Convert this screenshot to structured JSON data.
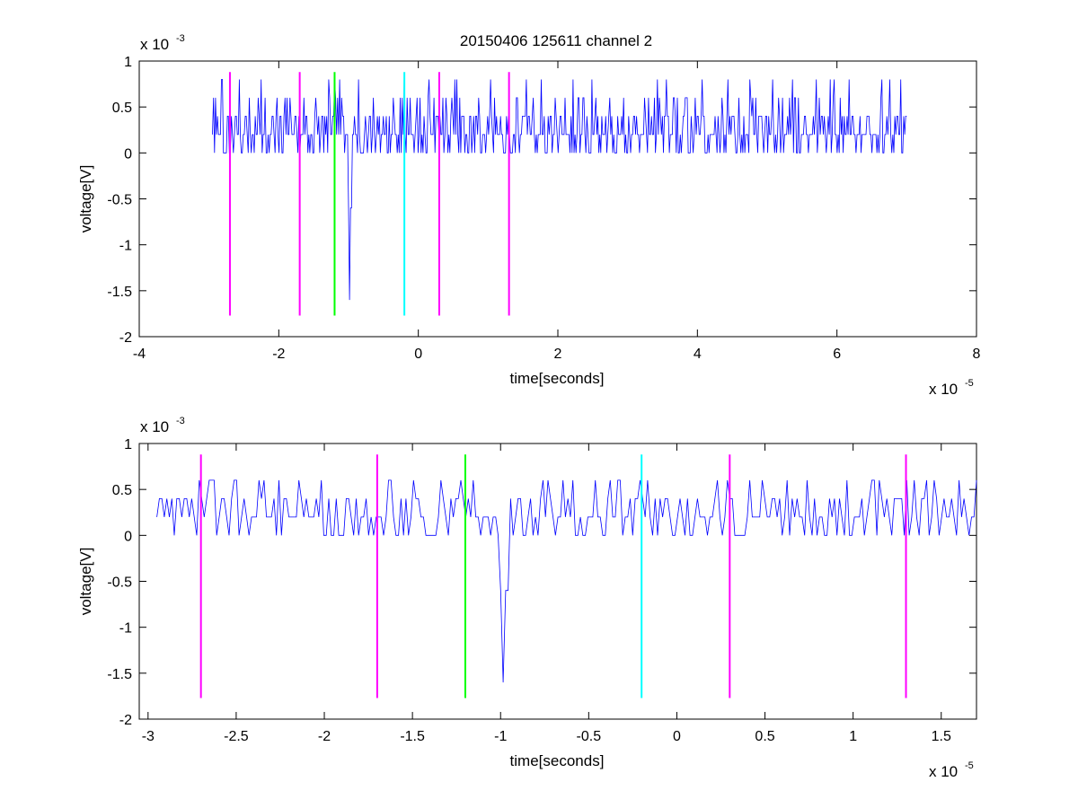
{
  "figure": {
    "title": "20150406 125611 channel 2"
  },
  "chart_data": [
    {
      "type": "line",
      "title": "20150406 125611 channel 2",
      "xlabel": "time[seconds]",
      "ylabel": "voltage[V]",
      "x_multiplier": "x 10",
      "x_multiplier_exp": "-5",
      "y_multiplier": "x 10",
      "y_multiplier_exp": "-3",
      "xlim": [
        -4,
        8
      ],
      "ylim": [
        -2,
        1
      ],
      "xticks": [
        -4,
        -2,
        0,
        2,
        4,
        6,
        8
      ],
      "xtick_labels": [
        "-4",
        "-2",
        "0",
        "2",
        "4",
        "6",
        "8"
      ],
      "yticks": [
        1,
        0.5,
        0,
        -0.5,
        -1,
        -1.5,
        -2
      ],
      "ytick_labels": [
        "1",
        "0.5",
        "0",
        "-0.5",
        "-1",
        "-1.5",
        "-2"
      ],
      "grid": false,
      "series": [
        {
          "color": "#0000ff",
          "x_range": [
            -2.95,
            7.0
          ],
          "baseline": 0.2,
          "levels": [
            0,
            0.2,
            0.4,
            0.6,
            0.8
          ],
          "spike": {
            "x": -0.98,
            "min": -1.6
          }
        }
      ],
      "markers": [
        {
          "x": -2.7,
          "color": "#ff00ff",
          "y_range": [
            -1.77,
            0.88
          ]
        },
        {
          "x": -1.7,
          "color": "#ff00ff",
          "y_range": [
            -1.77,
            0.88
          ]
        },
        {
          "x": -1.2,
          "color": "#00ff00",
          "y_range": [
            -1.77,
            0.88
          ]
        },
        {
          "x": -0.2,
          "color": "#00ffff",
          "y_range": [
            -1.77,
            0.88
          ]
        },
        {
          "x": 0.3,
          "color": "#ff00ff",
          "y_range": [
            -1.77,
            0.88
          ]
        },
        {
          "x": 1.3,
          "color": "#ff00ff",
          "y_range": [
            -1.77,
            0.88
          ]
        }
      ]
    },
    {
      "type": "line",
      "title": "",
      "xlabel": "time[seconds]",
      "ylabel": "voltage[V]",
      "x_multiplier": "x 10",
      "x_multiplier_exp": "-5",
      "y_multiplier": "x 10",
      "y_multiplier_exp": "-3",
      "xlim": [
        -3.05,
        1.7
      ],
      "ylim": [
        -2,
        1
      ],
      "xticks": [
        -3,
        -2.5,
        -2,
        -1.5,
        -1,
        -0.5,
        0,
        0.5,
        1,
        1.5
      ],
      "xtick_labels": [
        "-3",
        "-2.5",
        "-2",
        "-1.5",
        "-1",
        "-0.5",
        "0",
        "0.5",
        "1",
        "1.5"
      ],
      "yticks": [
        1,
        0.5,
        0,
        -0.5,
        -1,
        -1.5,
        -2
      ],
      "ytick_labels": [
        "1",
        "0.5",
        "0",
        "-0.5",
        "-1",
        "-1.5",
        "-2"
      ],
      "grid": false,
      "series": [
        {
          "color": "#0000ff",
          "x_range": [
            -2.95,
            1.7
          ],
          "baseline": 0.2,
          "levels": [
            0,
            0.2,
            0.4,
            0.6
          ],
          "spike": {
            "x": -0.98,
            "min": -1.6
          }
        }
      ],
      "markers": [
        {
          "x": -2.7,
          "color": "#ff00ff",
          "y_range": [
            -1.77,
            0.88
          ]
        },
        {
          "x": -1.7,
          "color": "#ff00ff",
          "y_range": [
            -1.77,
            0.88
          ]
        },
        {
          "x": -1.2,
          "color": "#00ff00",
          "y_range": [
            -1.77,
            0.88
          ]
        },
        {
          "x": -0.2,
          "color": "#00ffff",
          "y_range": [
            -1.77,
            0.88
          ]
        },
        {
          "x": 0.3,
          "color": "#ff00ff",
          "y_range": [
            -1.77,
            0.88
          ]
        },
        {
          "x": 1.3,
          "color": "#ff00ff",
          "y_range": [
            -1.77,
            0.88
          ]
        }
      ]
    }
  ]
}
